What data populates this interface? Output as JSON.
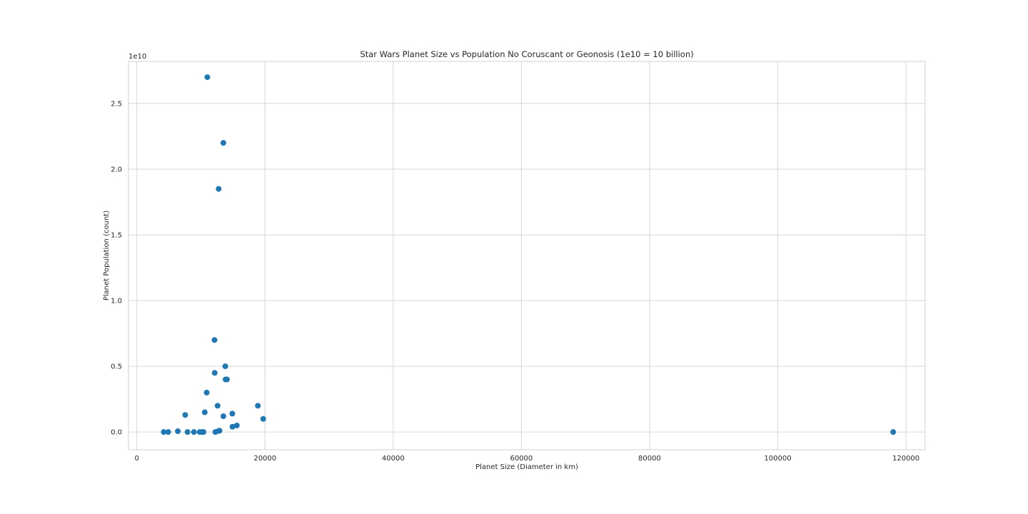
{
  "chart_data": {
    "type": "scatter",
    "title": "Star Wars Planet Size vs Population No Coruscant or Geonosis (1e10 = 10 billion)",
    "xlabel": "Planet Size (Diameter in km)",
    "ylabel": "Planet Population (count)",
    "y_offset_label": "1e10",
    "xlim": [
      -1300,
      123000
    ],
    "ylim": [
      -0.135,
      2.82
    ],
    "y_unit_multiplier": 10000000000,
    "xticks": [
      0,
      20000,
      40000,
      60000,
      80000,
      100000,
      120000
    ],
    "xtick_labels": [
      "0",
      "20000",
      "40000",
      "60000",
      "80000",
      "100000",
      "120000"
    ],
    "yticks": [
      0.0,
      0.5,
      1.0,
      1.5,
      2.0,
      2.5
    ],
    "ytick_labels": [
      "0.0",
      "0.5",
      "1.0",
      "1.5",
      "2.0",
      "2.5"
    ],
    "grid": true,
    "marker_color": "#1f77b4",
    "series": [
      {
        "x": [
          11000,
          13500,
          12765,
          12120,
          13800,
          12150,
          13850,
          14050,
          10900,
          12600,
          18880,
          10600,
          7549,
          14900,
          13500,
          19720,
          15600,
          14920,
          12900,
          12750,
          6400,
          4200,
          4900,
          7900,
          8900,
          9800,
          10200,
          10400,
          12240,
          118000
        ],
        "y": [
          2.7,
          2.2,
          1.85,
          0.7,
          0.5,
          0.45,
          0.4,
          0.4,
          0.3,
          0.2,
          0.2,
          0.15,
          0.13,
          0.14,
          0.12,
          0.1,
          0.05,
          0.04,
          0.01,
          0.008,
          0.006,
          0.0,
          0.0,
          0.0,
          0.0,
          0.0,
          0.0,
          0.0,
          0.0,
          0.0
        ]
      }
    ]
  }
}
